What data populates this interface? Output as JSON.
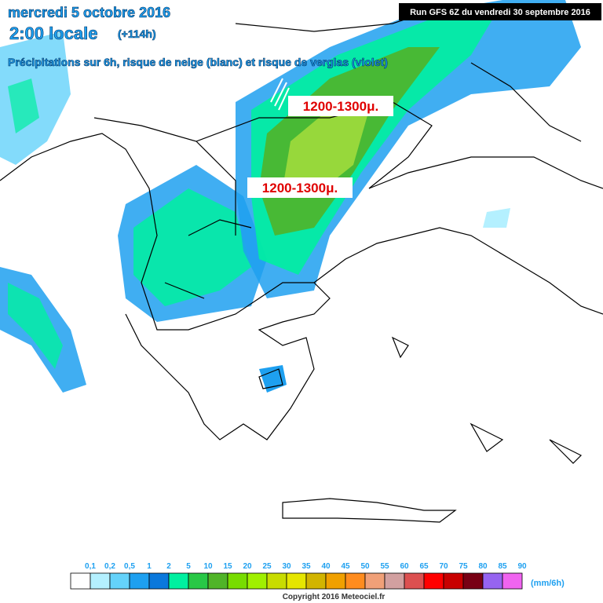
{
  "header": {
    "date": "mercredi 5 octobre 2016",
    "time": "2:00 locale",
    "lead": "(+114h)",
    "subtitle": "Précipitations sur 6h, risque de neige (blanc) et risque de verglas (violet)",
    "run": "Run GFS 6Z du vendredi 30 septembre 2016"
  },
  "annotations": [
    "1200-1300μ.",
    "1200-1300μ."
  ],
  "legend": {
    "unit": "(mm/6h)",
    "items": [
      {
        "label": "0,1",
        "color": "#ffffff"
      },
      {
        "label": "0,2",
        "color": "#b4f0ff"
      },
      {
        "label": "0,5",
        "color": "#64d2fa"
      },
      {
        "label": "1",
        "color": "#1ea0f0"
      },
      {
        "label": "2",
        "color": "#0a78dc"
      },
      {
        "label": "5",
        "color": "#00f0a0"
      },
      {
        "label": "10",
        "color": "#28c846"
      },
      {
        "label": "15",
        "color": "#50b428"
      },
      {
        "label": "20",
        "color": "#78dc00"
      },
      {
        "label": "25",
        "color": "#a0f000"
      },
      {
        "label": "30",
        "color": "#c8dc00"
      },
      {
        "label": "35",
        "color": "#e6e600"
      },
      {
        "label": "40",
        "color": "#d2b400"
      },
      {
        "label": "45",
        "color": "#f0a000"
      },
      {
        "label": "50",
        "color": "#ff8c1e"
      },
      {
        "label": "55",
        "color": "#f0a078"
      },
      {
        "label": "60",
        "color": "#d2a0a0"
      },
      {
        "label": "65",
        "color": "#dc5050"
      },
      {
        "label": "70",
        "color": "#ff0000"
      },
      {
        "label": "75",
        "color": "#c80000"
      },
      {
        "label": "80",
        "color": "#780014"
      },
      {
        "label": "85",
        "color": "#9664f0"
      },
      {
        "label": "90",
        "color": "#f064f0"
      }
    ]
  },
  "copyright": "Copyright 2016 Meteociel.fr"
}
